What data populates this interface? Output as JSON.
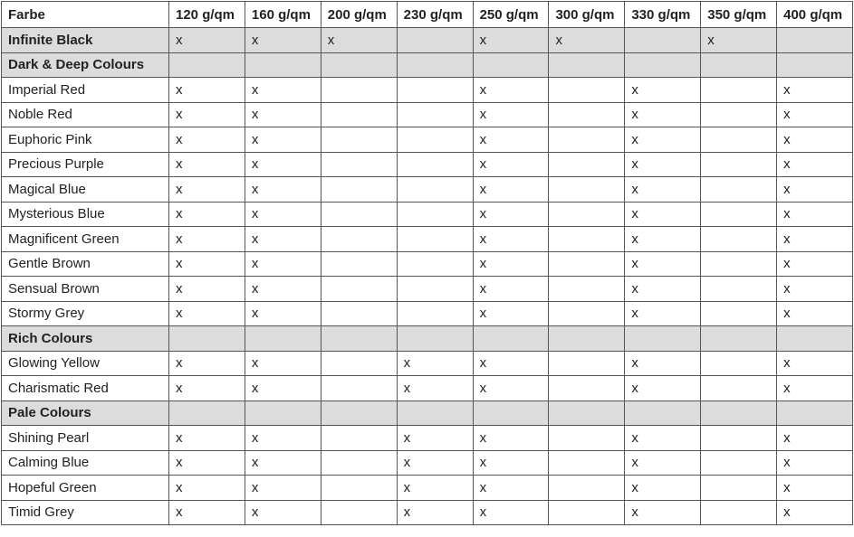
{
  "table": {
    "headers": [
      "Farbe",
      "120 g/qm",
      "160 g/qm",
      "200 g/qm",
      "230 g/qm",
      "250 g/qm",
      "300 g/qm",
      "330 g/qm",
      "350 g/qm",
      "400 g/qm"
    ],
    "group_background": "#dcdcdc",
    "rows": [
      {
        "name": "Infinite Black",
        "group": true,
        "cells": [
          "x",
          "x",
          "x",
          "",
          "x",
          "x",
          "",
          "x",
          ""
        ]
      },
      {
        "name": "Dark & Deep Colours",
        "group": true,
        "cells": [
          "",
          "",
          "",
          "",
          "",
          "",
          "",
          "",
          ""
        ]
      },
      {
        "name": "Imperial Red",
        "group": false,
        "cells": [
          "x",
          "x",
          "",
          "",
          "x",
          "",
          "x",
          "",
          "x"
        ]
      },
      {
        "name": "Noble Red",
        "group": false,
        "cells": [
          "x",
          "x",
          "",
          "",
          "x",
          "",
          "x",
          "",
          "x"
        ]
      },
      {
        "name": "Euphoric Pink",
        "group": false,
        "cells": [
          "x",
          "x",
          "",
          "",
          "x",
          "",
          "x",
          "",
          "x"
        ]
      },
      {
        "name": "Precious Purple",
        "group": false,
        "cells": [
          "x",
          "x",
          "",
          "",
          "x",
          "",
          "x",
          "",
          "x"
        ]
      },
      {
        "name": "Magical Blue",
        "group": false,
        "cells": [
          "x",
          "x",
          "",
          "",
          "x",
          "",
          "x",
          "",
          "x"
        ]
      },
      {
        "name": "Mysterious Blue",
        "group": false,
        "cells": [
          "x",
          "x",
          "",
          "",
          "x",
          "",
          "x",
          "",
          "x"
        ]
      },
      {
        "name": "Magnificent Green",
        "group": false,
        "cells": [
          "x",
          "x",
          "",
          "",
          "x",
          "",
          "x",
          "",
          "x"
        ]
      },
      {
        "name": "Gentle Brown",
        "group": false,
        "cells": [
          "x",
          "x",
          "",
          "",
          "x",
          "",
          "x",
          "",
          "x"
        ]
      },
      {
        "name": "Sensual Brown",
        "group": false,
        "cells": [
          "x",
          "x",
          "",
          "",
          "x",
          "",
          "x",
          "",
          "x"
        ]
      },
      {
        "name": "Stormy Grey",
        "group": false,
        "cells": [
          "x",
          "x",
          "",
          "",
          "x",
          "",
          "x",
          "",
          "x"
        ]
      },
      {
        "name": "Rich Colours",
        "group": true,
        "cells": [
          "",
          "",
          "",
          "",
          "",
          "",
          "",
          "",
          ""
        ]
      },
      {
        "name": "Glowing Yellow",
        "group": false,
        "cells": [
          "x",
          "x",
          "",
          "x",
          "x",
          "",
          "x",
          "",
          "x"
        ]
      },
      {
        "name": "Charismatic Red",
        "group": false,
        "cells": [
          "x",
          "x",
          "",
          "x",
          "x",
          "",
          "x",
          "",
          "x"
        ]
      },
      {
        "name": "Pale Colours",
        "group": true,
        "cells": [
          "",
          "",
          "",
          "",
          "",
          "",
          "",
          "",
          ""
        ]
      },
      {
        "name": "Shining Pearl",
        "group": false,
        "cells": [
          "x",
          "x",
          "",
          "x",
          "x",
          "",
          "x",
          "",
          "x"
        ]
      },
      {
        "name": "Calming Blue",
        "group": false,
        "cells": [
          "x",
          "x",
          "",
          "x",
          "x",
          "",
          "x",
          "",
          "x"
        ]
      },
      {
        "name": "Hopeful Green",
        "group": false,
        "cells": [
          "x",
          "x",
          "",
          "x",
          "x",
          "",
          "x",
          "",
          "x"
        ]
      },
      {
        "name": "Timid Grey",
        "group": false,
        "cells": [
          "x",
          "x",
          "",
          "x",
          "x",
          "",
          "x",
          "",
          "x"
        ]
      }
    ]
  }
}
